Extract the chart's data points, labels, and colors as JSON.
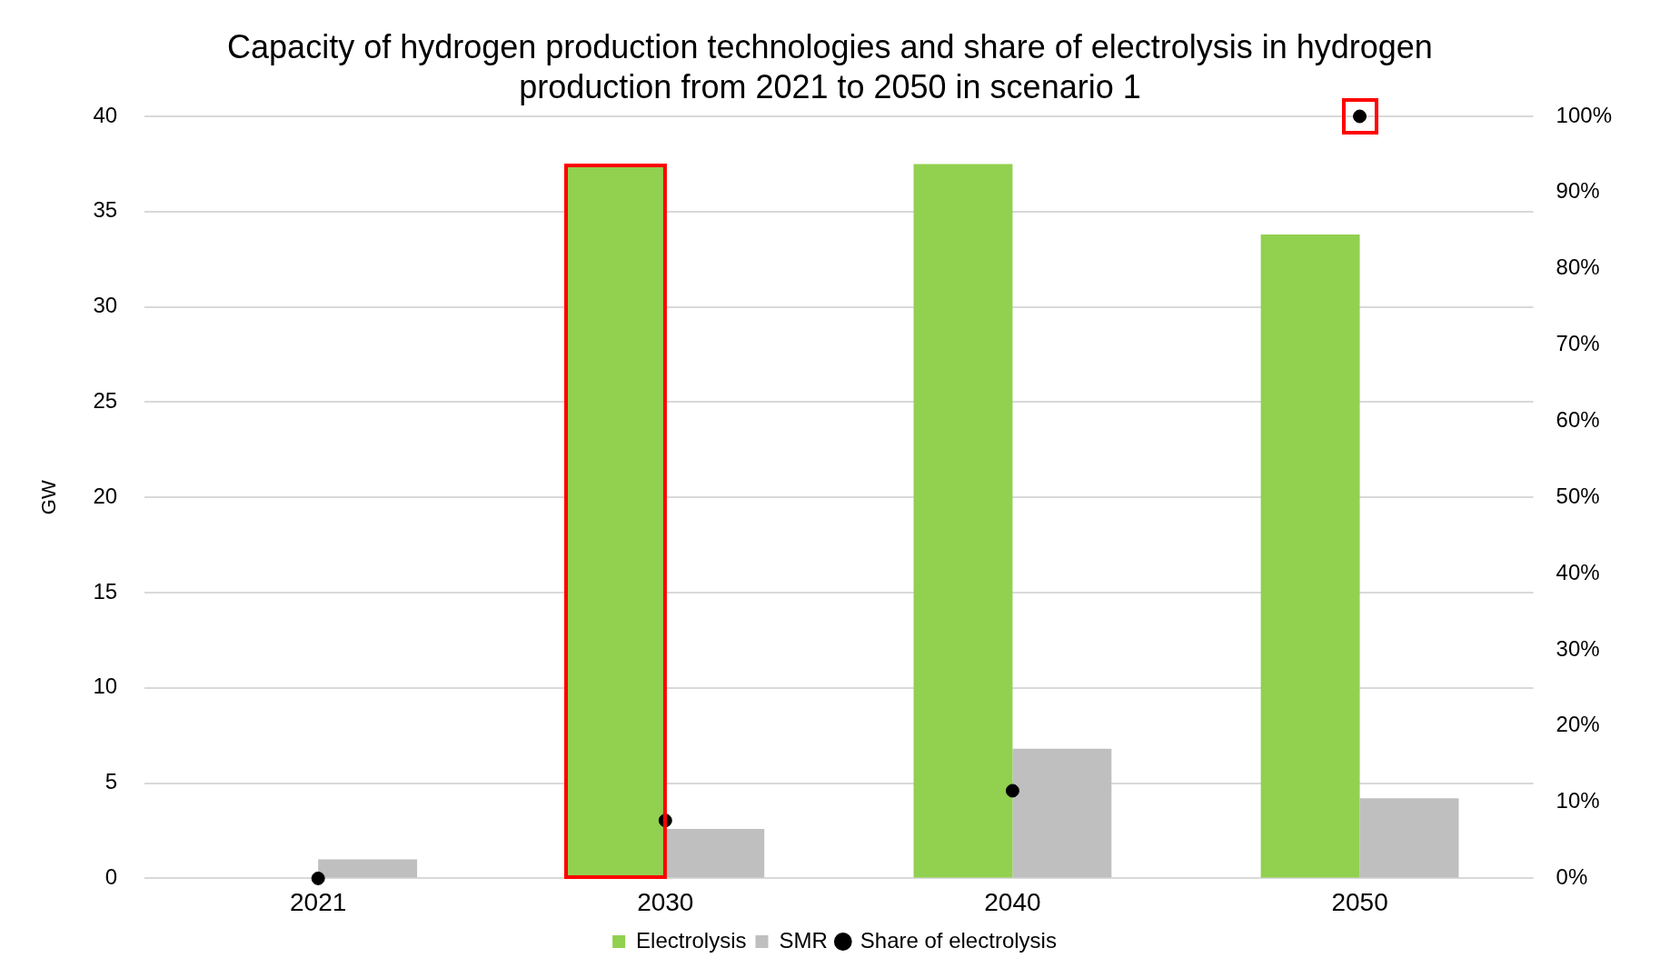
{
  "chart_data": {
    "type": "bar",
    "title": "Capacity of hydrogen production technologies and share of electrolysis in hydrogen production from 2021 to 2050 in scenario 1",
    "ylabel": "GW",
    "categories": [
      "2021",
      "2030",
      "2040",
      "2050"
    ],
    "series": [
      {
        "name": "Electrolysis",
        "color": "#92d050",
        "values": [
          0,
          37.4,
          37.5,
          33.8
        ]
      },
      {
        "name": "SMR",
        "color": "#bfbfbf",
        "values": [
          1.0,
          2.6,
          6.8,
          4.2
        ]
      },
      {
        "name": "Share of electrolysis",
        "type": "scatter",
        "axis": "y2",
        "color": "#000000",
        "values": [
          0,
          7.6,
          11.5,
          100
        ]
      }
    ],
    "ylim": [
      0,
      40
    ],
    "yticks": [
      0,
      5,
      10,
      15,
      20,
      25,
      30,
      35,
      40
    ],
    "y2lim": [
      0,
      100
    ],
    "y2ticks": [
      {
        "value": 0,
        "label": "0%"
      },
      {
        "value": 10,
        "label": "10%"
      },
      {
        "value": 20,
        "label": "20%"
      },
      {
        "value": 30,
        "label": "30%"
      },
      {
        "value": 40,
        "label": "40%"
      },
      {
        "value": 50,
        "label": "50%"
      },
      {
        "value": 60,
        "label": "60%"
      },
      {
        "value": 70,
        "label": "70%"
      },
      {
        "value": 80,
        "label": "80%"
      },
      {
        "value": 90,
        "label": "90%"
      },
      {
        "value": 100,
        "label": "100%"
      }
    ],
    "grid": "y",
    "legend": "bottom",
    "marker": "circle"
  }
}
